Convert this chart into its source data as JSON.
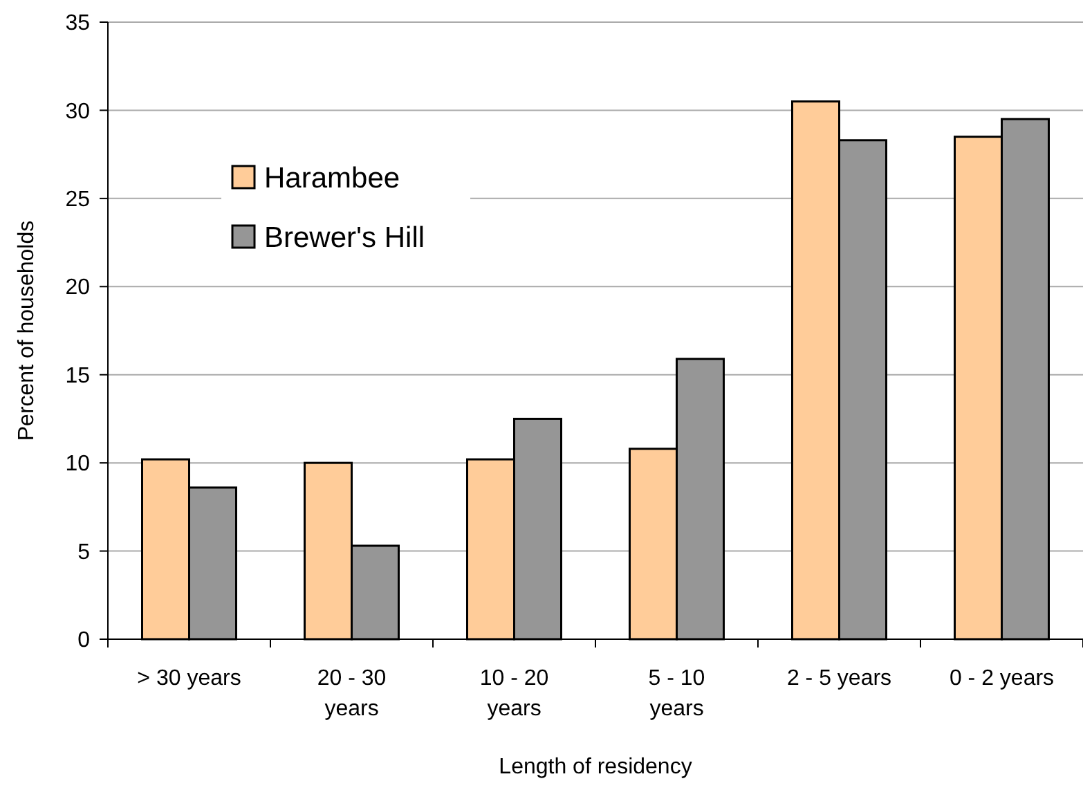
{
  "chart_data": {
    "type": "bar",
    "xlabel": "Length of residency",
    "ylabel": "Percent of households",
    "categories": [
      "> 30 years",
      "20 - 30 years",
      "10 - 20 years",
      "5 - 10 years",
      "2 - 5 years",
      "0 - 2 years"
    ],
    "series": [
      {
        "name": "Harambee",
        "color": "#ffcc99",
        "values": [
          10.2,
          10.0,
          10.2,
          10.8,
          30.5,
          28.5
        ]
      },
      {
        "name": "Brewer's Hill",
        "color": "#969696",
        "values": [
          8.6,
          5.3,
          12.5,
          15.9,
          28.3,
          29.5
        ]
      }
    ],
    "ylim": [
      0,
      35
    ],
    "yticks": [
      0,
      5,
      10,
      15,
      20,
      25,
      30,
      35
    ],
    "grid": "y",
    "legend": "top left"
  }
}
